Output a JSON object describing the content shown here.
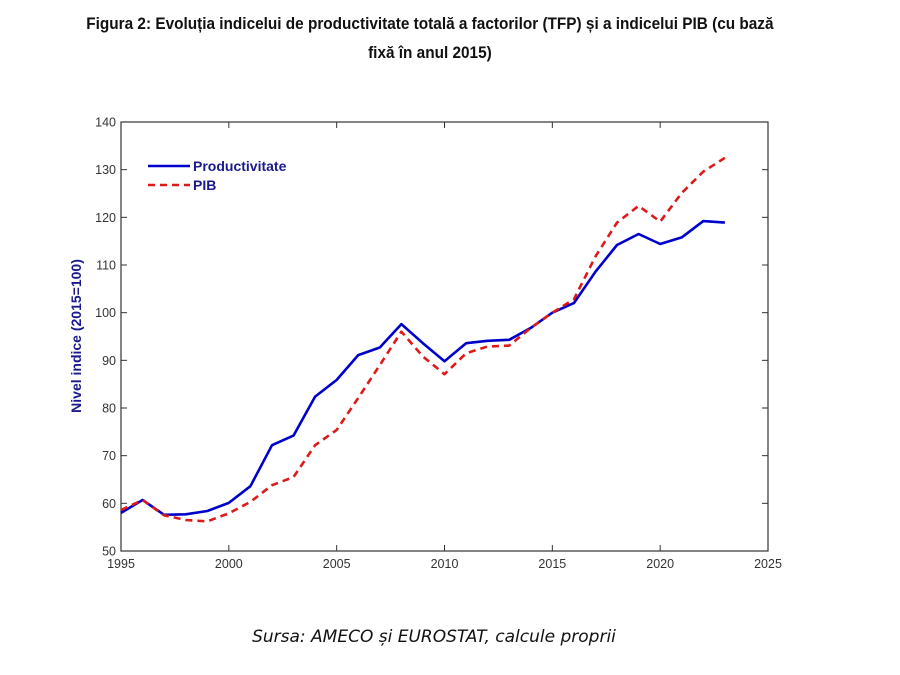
{
  "figure": {
    "title_line1": "Figura 2: Evoluția indicelui de productivitate totală a factorilor (TFP) și a indicelui PIB (cu bază",
    "title_line2": "fixă în anul 2015)",
    "source": "Sursa: AMECO și EUROSTAT, calcule proprii"
  },
  "chart_data": {
    "type": "line",
    "title": "Evoluția indicelui de productivitate totală a factorilor (TFP) și a indicelui PIB (cu bază fixă în anul 2015)",
    "xlabel": "",
    "ylabel": "Nivel indice (2015=100)",
    "xlim": [
      1995,
      2025
    ],
    "ylim": [
      50,
      140
    ],
    "xticks": [
      1995,
      2000,
      2005,
      2010,
      2015,
      2020,
      2025
    ],
    "yticks": [
      50,
      60,
      70,
      80,
      90,
      100,
      110,
      120,
      130,
      140
    ],
    "grid": false,
    "legend_position": "top-left",
    "x": [
      1995,
      1996,
      1997,
      1998,
      1999,
      2000,
      2001,
      2002,
      2003,
      2004,
      2005,
      2006,
      2007,
      2008,
      2009,
      2010,
      2011,
      2012,
      2013,
      2014,
      2015,
      2016,
      2017,
      2018,
      2019,
      2020,
      2021,
      2022,
      2023
    ],
    "series": [
      {
        "name": "Productivitate",
        "color": "#0000cc",
        "style": "solid",
        "values": [
          58.0,
          60.7,
          57.6,
          57.7,
          58.4,
          60.1,
          63.6,
          72.2,
          74.2,
          82.4,
          85.9,
          91.1,
          92.7,
          97.6,
          93.6,
          89.8,
          93.6,
          94.1,
          94.3,
          96.8,
          100.0,
          102.0,
          108.6,
          114.2,
          116.5,
          114.4,
          115.8,
          119.2,
          118.9
        ]
      },
      {
        "name": "PIB",
        "color": "#dd1a1a",
        "style": "dashed",
        "values": [
          58.6,
          60.7,
          57.5,
          56.5,
          56.2,
          57.9,
          60.3,
          63.8,
          65.5,
          72.2,
          75.4,
          82.1,
          89.0,
          96.0,
          90.8,
          87.1,
          91.5,
          92.9,
          93.1,
          96.8,
          100.0,
          102.8,
          111.8,
          118.9,
          122.4,
          119.1,
          125.1,
          129.6,
          132.5
        ]
      }
    ]
  }
}
